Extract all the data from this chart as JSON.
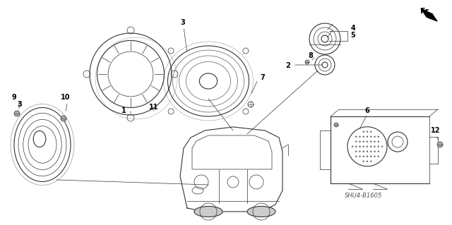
{
  "bg_color": "#ffffff",
  "line_color": "#333333",
  "label_color": "#000000",
  "diagram_code": "SHU4-B1605",
  "figsize": [
    6.4,
    3.19
  ],
  "dpi": 100
}
